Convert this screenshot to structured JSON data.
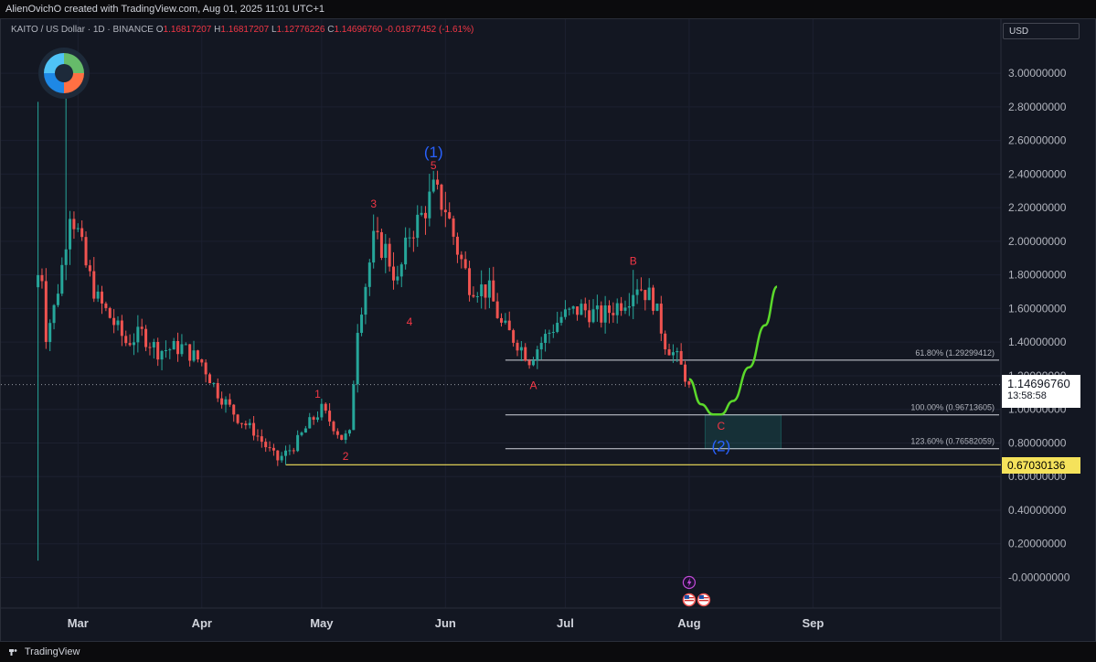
{
  "header": {
    "attribution": "AlienOvichO created with TradingView.com, Aug 01, 2025 11:01 UTC+1"
  },
  "legend": {
    "symbol": "KAITO / US Dollar · 1D · BINANCE",
    "open_label": "O",
    "open": "1.16817207",
    "high_label": "H",
    "high": "1.16817207",
    "low_label": "L",
    "low": "1.12776226",
    "close_label": "C",
    "close": "1.14696760",
    "change": "-0.01877452 (-1.61%)"
  },
  "price_scale": {
    "currency": "USD",
    "current_price": "1.14696760",
    "countdown": "13:58:58",
    "support_price": "0.67030136"
  },
  "footer": {
    "brand": "TradingView"
  },
  "colors": {
    "background": "#131722",
    "up": "#26a69a",
    "down": "#ef5350",
    "wave_label": "#f23645",
    "major_wave": "#2962ff",
    "projection": "#4caf50",
    "support_line": "#f5e25b",
    "fib_line": "#d1d4dc"
  },
  "chart_data": {
    "type": "candlestick",
    "x_axis": {
      "type": "date",
      "ticks": [
        "Mar",
        "Apr",
        "May",
        "Jun",
        "Jul",
        "Aug",
        "Sep"
      ]
    },
    "y_axis": {
      "range": [
        -0.1,
        3.2
      ],
      "ticks": [
        "3.00000000",
        "2.80000000",
        "2.60000000",
        "2.40000000",
        "2.20000000",
        "2.00000000",
        "1.80000000",
        "1.60000000",
        "1.40000000",
        "1.20000000",
        "1.00000000",
        "0.80000000",
        "0.60000000",
        "0.40000000",
        "0.20000000",
        "-0.00000000"
      ],
      "tick_values": [
        3.0,
        2.8,
        2.6,
        2.4,
        2.2,
        2.0,
        1.8,
        1.6,
        1.4,
        1.2,
        1.0,
        0.8,
        0.6,
        0.4,
        0.2,
        0.0
      ]
    },
    "price_path": [
      [
        "2025-02-20",
        1.8
      ],
      [
        "2025-02-21",
        1.45
      ],
      [
        "2025-02-23",
        1.6
      ],
      [
        "2025-02-25",
        1.85
      ],
      [
        "2025-02-27",
        2.2
      ],
      [
        "2025-03-01",
        2.05
      ],
      [
        "2025-03-03",
        1.85
      ],
      [
        "2025-03-06",
        1.65
      ],
      [
        "2025-03-09",
        1.55
      ],
      [
        "2025-03-13",
        1.4
      ],
      [
        "2025-03-17",
        1.45
      ],
      [
        "2025-03-21",
        1.35
      ],
      [
        "2025-03-27",
        1.37
      ],
      [
        "2025-04-01",
        1.28
      ],
      [
        "2025-04-05",
        1.1
      ],
      [
        "2025-04-10",
        0.95
      ],
      [
        "2025-04-14",
        0.87
      ],
      [
        "2025-04-17",
        0.78
      ],
      [
        "2025-04-20",
        0.7
      ],
      [
        "2025-04-24",
        0.78
      ],
      [
        "2025-04-28",
        0.92
      ],
      [
        "2025-05-01",
        1.0
      ],
      [
        "2025-05-04",
        0.9
      ],
      [
        "2025-05-06",
        0.83
      ],
      [
        "2025-05-08",
        0.85
      ],
      [
        "2025-05-10",
        1.5
      ],
      [
        "2025-05-12",
        1.75
      ],
      [
        "2025-05-14",
        2.0
      ],
      [
        "2025-05-17",
        1.95
      ],
      [
        "2025-05-20",
        1.75
      ],
      [
        "2025-05-23",
        2.05
      ],
      [
        "2025-05-26",
        2.15
      ],
      [
        "2025-05-29",
        2.3
      ],
      [
        "2025-06-01",
        2.2
      ],
      [
        "2025-06-04",
        1.95
      ],
      [
        "2025-06-07",
        1.75
      ],
      [
        "2025-06-12",
        1.7
      ],
      [
        "2025-06-15",
        1.5
      ],
      [
        "2025-06-19",
        1.4
      ],
      [
        "2025-06-22",
        1.3
      ],
      [
        "2025-06-25",
        1.4
      ],
      [
        "2025-06-30",
        1.55
      ],
      [
        "2025-07-05",
        1.6
      ],
      [
        "2025-07-10",
        1.55
      ],
      [
        "2025-07-14",
        1.62
      ],
      [
        "2025-07-17",
        1.68
      ],
      [
        "2025-07-19",
        1.75
      ],
      [
        "2025-07-23",
        1.65
      ],
      [
        "2025-07-26",
        1.4
      ],
      [
        "2025-07-29",
        1.3
      ],
      [
        "2025-08-01",
        1.15
      ]
    ],
    "swing_points": [
      {
        "date": "2025-02-19",
        "low": 0.1,
        "high": 2.83
      },
      {
        "date": "2025-02-26",
        "high": 2.94
      },
      {
        "date": "2025-04-22",
        "low": 0.67
      },
      {
        "date": "2025-05-30",
        "high": 2.42
      },
      {
        "date": "2025-07-18",
        "high": 1.83
      }
    ],
    "wave_labels": [
      {
        "text": "1",
        "date": "2025-04-30",
        "price": 1.07
      },
      {
        "text": "2",
        "date": "2025-05-07",
        "price": 0.7
      },
      {
        "text": "3",
        "date": "2025-05-14",
        "price": 2.2
      },
      {
        "text": "4",
        "date": "2025-05-23",
        "price": 1.5
      },
      {
        "text": "5",
        "date": "2025-05-29",
        "price": 2.43
      },
      {
        "text": "(1)",
        "date": "2025-05-29",
        "price": 2.5
      },
      {
        "text": "A",
        "date": "2025-06-23",
        "price": 1.12
      },
      {
        "text": "B",
        "date": "2025-07-18",
        "price": 1.86
      },
      {
        "text": "C",
        "date": "2025-08-09",
        "price": 0.88
      },
      {
        "text": "(2)",
        "date": "2025-08-09",
        "price": 0.75
      }
    ],
    "fib_levels": [
      {
        "label": "61.80% (1.29299412)",
        "price": 1.29299412
      },
      {
        "label": "100.00% (0.96713605)",
        "price": 0.96713605
      },
      {
        "label": "123.60% (0.76582059)",
        "price": 0.76582059
      }
    ],
    "support_line": {
      "price": 0.67030136
    },
    "target_zone": {
      "from": 0.76582059,
      "to": 0.96713605
    },
    "projection": [
      [
        "2025-08-01",
        1.18
      ],
      [
        "2025-08-04",
        1.03
      ],
      [
        "2025-08-07",
        0.97
      ],
      [
        "2025-08-09",
        0.97
      ],
      [
        "2025-08-12",
        1.05
      ],
      [
        "2025-08-16",
        1.25
      ],
      [
        "2025-08-20",
        1.5
      ],
      [
        "2025-08-23",
        1.73
      ]
    ],
    "current_price": 1.1469676,
    "events": [
      "lightning-icon",
      "us-flag-icon",
      "us-flag-icon"
    ]
  }
}
